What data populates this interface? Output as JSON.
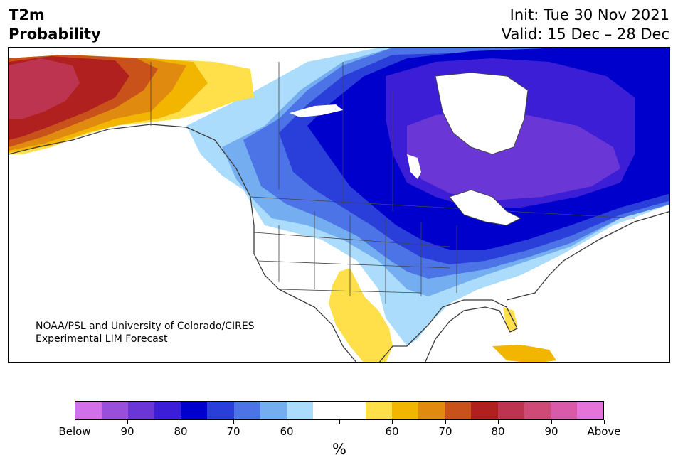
{
  "header": {
    "title_line1": "T2m",
    "title_line2": "Probability",
    "init_label": "Init: Tue 30 Nov 2021",
    "valid_label": "Valid: 15 Dec – 28 Dec"
  },
  "map": {
    "credit_line1": "NOAA/PSL and University of Colorado/CIRES",
    "credit_line2": "Experimental LIM Forecast"
  },
  "colorbar": {
    "colors": [
      "#d170e8",
      "#9a4fdc",
      "#6a36d6",
      "#3b1ed6",
      "#0000cd",
      "#2a3fd9",
      "#4c74e6",
      "#74aef0",
      "#abdcfb",
      "#ffffff",
      "#ffffff",
      "#ffe04a",
      "#f2b600",
      "#e08a10",
      "#c8521a",
      "#b0201f",
      "#bd3450",
      "#cf4a77",
      "#d85aa8",
      "#e574d8"
    ],
    "tick_labels": [
      "Below",
      "90",
      "80",
      "70",
      "60",
      "",
      "60",
      "70",
      "80",
      "90",
      "Above"
    ],
    "unit_label": "%"
  }
}
